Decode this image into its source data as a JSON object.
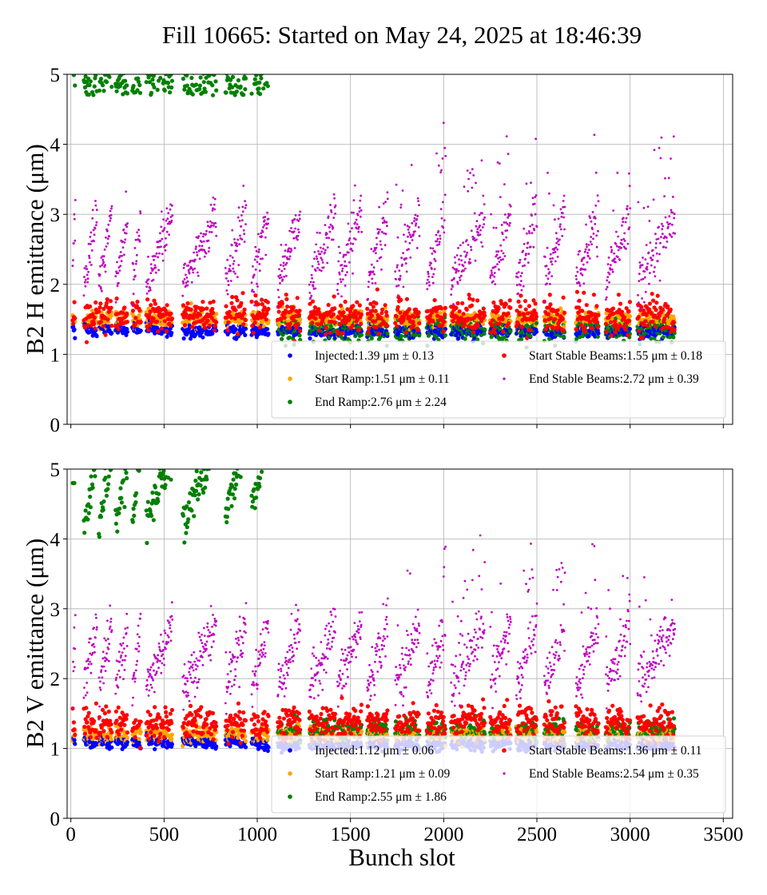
{
  "chart_data": {
    "title": "Fill 10665: Started on May 24, 2025 at 18:46:39",
    "xlabel": "Bunch slot",
    "type": "scatter",
    "xlim": [
      -20,
      3550
    ],
    "xticks": [
      0,
      500,
      1000,
      1500,
      2000,
      2500,
      3000,
      3500
    ],
    "panels": [
      {
        "ylabel": "B2 H emittance (μm)",
        "ylim": [
          0,
          5
        ],
        "yticks": [
          0,
          1,
          2,
          3,
          4,
          5
        ],
        "x_ticklabels_shown": false,
        "legend_placement": "lower-right",
        "series": [
          {
            "name": "Injected:1.39 μm ± 0.13",
            "color": "#0000ff",
            "mean": 1.39,
            "std": 0.13,
            "marker_size": 2.6
          },
          {
            "name": "Start Ramp:1.51 μm ± 0.11",
            "color": "#ffa500",
            "mean": 1.51,
            "std": 0.11,
            "marker_size": 2.6
          },
          {
            "name": "End Ramp:2.76 μm ± 2.24",
            "color": "#008000",
            "mean": 2.76,
            "std": 2.24,
            "marker_size": 2.6
          },
          {
            "name": "Start Stable Beams:1.55 μm ± 0.18",
            "color": "#ff0000",
            "mean": 1.55,
            "std": 0.18,
            "marker_size": 2.6
          },
          {
            "name": "End Stable Beams:2.72 μm ± 0.39",
            "color": "#c000c0",
            "mean": 2.72,
            "std": 0.39,
            "marker_size": 1.4
          }
        ]
      },
      {
        "ylabel": "B2 V emittance (μm)",
        "ylim": [
          0,
          5
        ],
        "yticks": [
          0,
          1,
          2,
          3,
          4,
          5
        ],
        "x_ticklabels_shown": true,
        "legend_placement": "lower-right",
        "series": [
          {
            "name": "Injected:1.12 μm ± 0.06",
            "color": "#0000ff",
            "mean": 1.12,
            "std": 0.06,
            "marker_size": 2.6
          },
          {
            "name": "Start Ramp:1.21 μm ± 0.09",
            "color": "#ffa500",
            "mean": 1.21,
            "std": 0.09,
            "marker_size": 2.6
          },
          {
            "name": "End Ramp:2.55 μm ± 1.86",
            "color": "#008000",
            "mean": 2.55,
            "std": 1.86,
            "marker_size": 2.6
          },
          {
            "name": "Start Stable Beams:1.36 μm ± 0.11",
            "color": "#ff0000",
            "mean": 1.36,
            "std": 0.11,
            "marker_size": 2.6
          },
          {
            "name": "End Stable Beams:2.54 μm ± 0.35",
            "color": "#c000c0",
            "mean": 2.54,
            "std": 0.35,
            "marker_size": 1.4
          }
        ]
      }
    ],
    "bunch_trains": [
      [
        10,
        24
      ],
      [
        70,
        140
      ],
      [
        150,
        220
      ],
      [
        240,
        305
      ],
      [
        330,
        375
      ],
      [
        405,
        545
      ],
      [
        600,
        780
      ],
      [
        830,
        940
      ],
      [
        970,
        1060
      ],
      [
        1110,
        1230
      ],
      [
        1280,
        1420
      ],
      [
        1430,
        1560
      ],
      [
        1590,
        1700
      ],
      [
        1740,
        1870
      ],
      [
        1910,
        2010
      ],
      [
        2040,
        2220
      ],
      [
        2250,
        2360
      ],
      [
        2390,
        2500
      ],
      [
        2540,
        2650
      ],
      [
        2710,
        2830
      ],
      [
        2870,
        3000
      ],
      [
        3040,
        3240
      ]
    ],
    "green_high_trains_H": [
      [
        10,
        24
      ],
      [
        70,
        140
      ],
      [
        150,
        220
      ],
      [
        240,
        305
      ],
      [
        330,
        375
      ],
      [
        405,
        545
      ],
      [
        600,
        780
      ],
      [
        830,
        940
      ],
      [
        970,
        1060
      ]
    ],
    "green_high_trains_V": [
      [
        10,
        24
      ],
      [
        70,
        140
      ],
      [
        150,
        220
      ],
      [
        240,
        305
      ],
      [
        330,
        375
      ],
      [
        405,
        545
      ],
      [
        600,
        780
      ],
      [
        830,
        940
      ],
      [
        970,
        1060
      ]
    ]
  }
}
